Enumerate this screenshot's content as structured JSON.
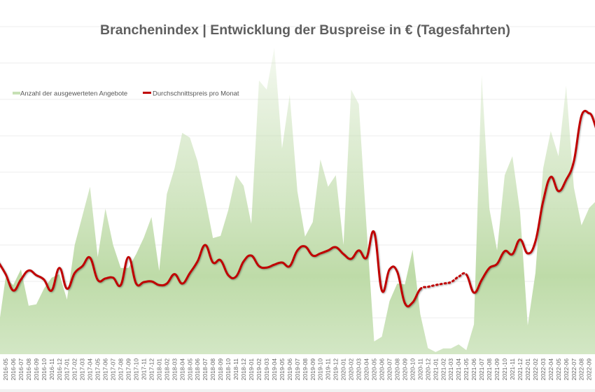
{
  "chart_data": {
    "type": "area+line",
    "title": "Branchenindex | Entwicklung der Buspreise in € (Tagesfahrten)",
    "xlabel": "",
    "ylabel": "",
    "legend_position": "top-left",
    "grid": true,
    "ylim": [
      0,
      9
    ],
    "categories": [
      "2016-04",
      "2016-05",
      "2016-06",
      "2016-07",
      "2016-08",
      "2016-09",
      "2016-10",
      "2016-11",
      "2016-12",
      "2017-01",
      "2017-02",
      "2017-03",
      "2017-04",
      "2017-05",
      "2017-06",
      "2017-07",
      "2017-08",
      "2017-09",
      "2017-10",
      "2017-11",
      "2017-12",
      "2018-01",
      "2018-02",
      "2018-03",
      "2018-04",
      "2018-05",
      "2018-06",
      "2018-07",
      "2018-08",
      "2018-09",
      "2018-10",
      "2018-11",
      "2018-12",
      "2019-01",
      "2019-02",
      "2019-03",
      "2019-04",
      "2019-05",
      "2019-06",
      "2019-07",
      "2019-08",
      "2019-09",
      "2019-10",
      "2019-11",
      "2019-12",
      "2020-01",
      "2020-02",
      "2020-03",
      "2020-04",
      "2020-05",
      "2020-06",
      "2020-07",
      "2020-08",
      "2020-09",
      "2020-10",
      "2020-11",
      "2020-12",
      "2021-01",
      "2021-02",
      "2021-03",
      "2021-04",
      "2021-05",
      "2021-06",
      "2021-07",
      "2021-08",
      "2021-09",
      "2021-10",
      "2021-11",
      "2021-12",
      "2022-01",
      "2022-02",
      "2022-03",
      "2022-04",
      "2022-05",
      "2022-06",
      "2022-07",
      "2022-08",
      "2022-09"
    ],
    "series": [
      {
        "name": "Anzahl der ausgewerteten Angebote",
        "type": "area",
        "color": "#c2dcad",
        "values": [
          0.6,
          2.1,
          1.9,
          2.33,
          1.33,
          1.37,
          1.8,
          2.1,
          2.2,
          1.5,
          3.0,
          3.8,
          4.6,
          2.67,
          4.0,
          3.0,
          2.37,
          2.37,
          2.75,
          3.2,
          3.77,
          2.29,
          4.4,
          5.1,
          6.08,
          5.95,
          5.3,
          4.28,
          3.19,
          3.25,
          3.96,
          4.92,
          4.63,
          3.58,
          7.52,
          7.27,
          8.42,
          5.65,
          7.13,
          4.48,
          3.23,
          3.63,
          5.35,
          4.6,
          4.92,
          3.0,
          7.27,
          6.87,
          3.5,
          0.35,
          0.48,
          1.46,
          1.94,
          1.92,
          2.87,
          1.1,
          0.17,
          0.06,
          0.16,
          0.16,
          0.27,
          0.11,
          0.82,
          7.67,
          4.0,
          2.85,
          4.92,
          5.44,
          3.9,
          0.79,
          2.23,
          5.1,
          6.13,
          5.44,
          7.38,
          4.58,
          3.54,
          4.02
        ]
      },
      {
        "name": "Durchschnittspreis pro Monat",
        "type": "line",
        "color": "#c00000",
        "dotted_range": [
          "2020-11",
          "2021-05"
        ],
        "values": [
          2.55,
          2.2,
          1.75,
          2.05,
          2.3,
          2.17,
          2.05,
          1.75,
          2.37,
          1.8,
          2.23,
          2.42,
          2.65,
          2.04,
          2.08,
          2.1,
          1.9,
          2.67,
          1.94,
          1.98,
          2.0,
          1.9,
          1.94,
          2.2,
          1.94,
          2.23,
          2.55,
          3.0,
          2.52,
          2.58,
          2.17,
          2.13,
          2.55,
          2.71,
          2.42,
          2.38,
          2.46,
          2.52,
          2.42,
          2.85,
          2.96,
          2.71,
          2.77,
          2.85,
          2.94,
          2.75,
          2.62,
          2.85,
          2.65,
          3.35,
          1.75,
          2.33,
          2.27,
          1.4,
          1.42,
          1.79,
          1.85,
          1.9,
          1.94,
          1.98,
          2.13,
          2.19,
          1.69,
          2.04,
          2.37,
          2.48,
          2.83,
          2.75,
          3.15,
          2.77,
          3.1,
          4.2,
          4.87,
          4.48,
          4.79,
          5.3,
          6.55,
          6.62
        ]
      }
    ]
  }
}
